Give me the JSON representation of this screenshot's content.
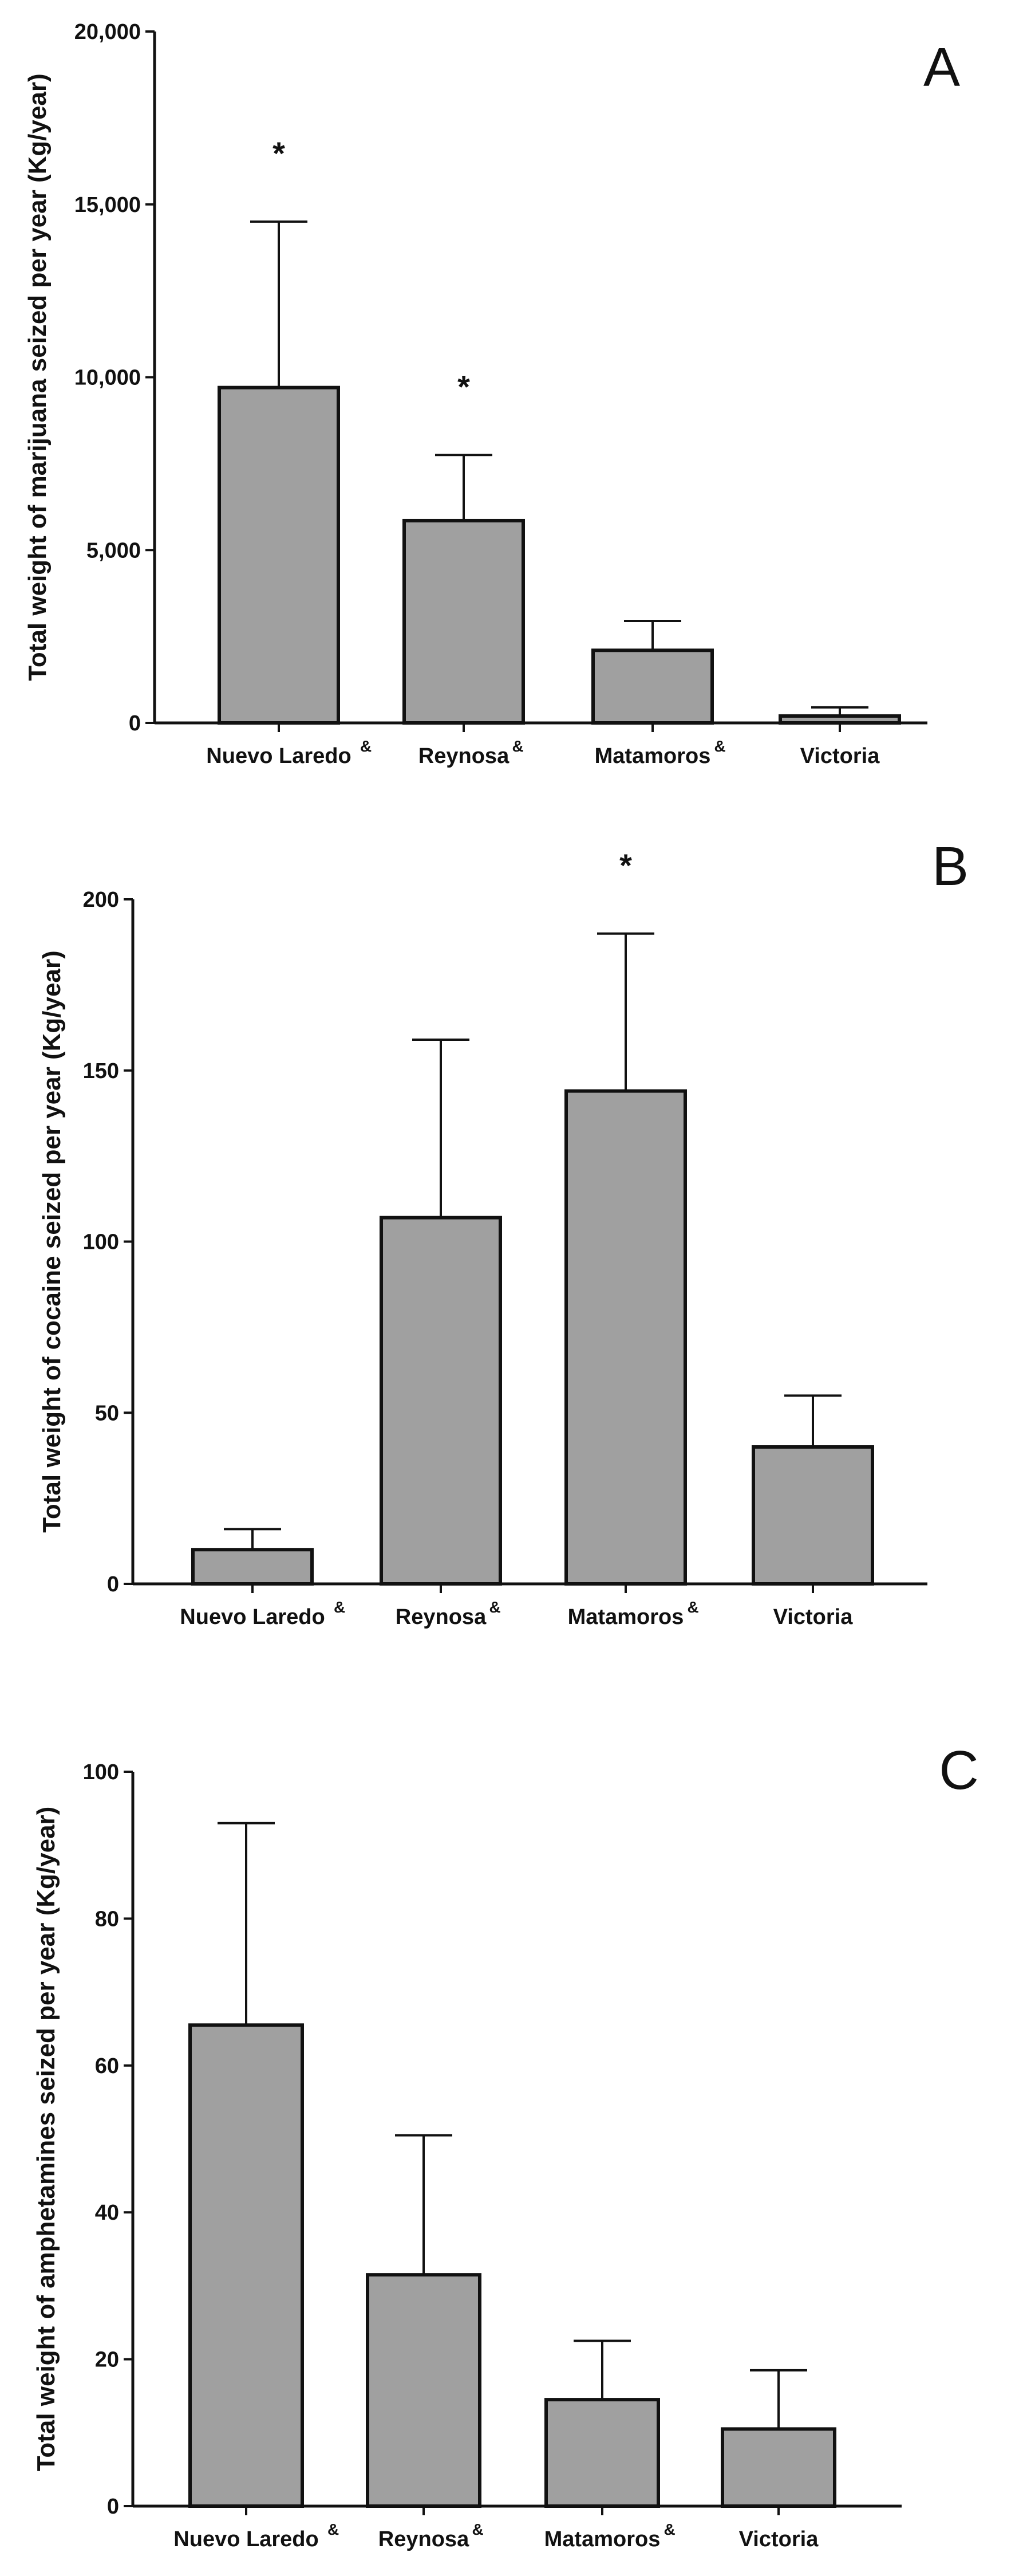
{
  "chart_data": [
    {
      "type": "bar",
      "panel": "A",
      "ylabel": "Total weight of marijuana seized per year (Kg/year)",
      "ylim": [
        0,
        20000
      ],
      "yticks": [
        0,
        5000,
        10000,
        15000,
        20000
      ],
      "ytick_labels": [
        "0",
        "5,000",
        "10,000",
        "15,000",
        "20,000"
      ],
      "categories": [
        "Nuevo Laredo",
        "Reynosa",
        "Matamoros",
        "Victoria"
      ],
      "category_marks": [
        "&",
        "&",
        "&",
        ""
      ],
      "values": [
        9700,
        5850,
        2100,
        200
      ],
      "errors": [
        4800,
        1900,
        850,
        250
      ],
      "significance": [
        "*",
        "*",
        "",
        ""
      ]
    },
    {
      "type": "bar",
      "panel": "B",
      "ylabel": "Total weight of cocaine seized per year (Kg/year)",
      "ylim": [
        0,
        200
      ],
      "yticks": [
        0,
        50,
        100,
        150,
        200
      ],
      "ytick_labels": [
        "0",
        "50",
        "100",
        "150",
        "200"
      ],
      "categories": [
        "Nuevo Laredo",
        "Reynosa",
        "Matamoros",
        "Victoria"
      ],
      "category_marks": [
        "&",
        "&",
        "&",
        ""
      ],
      "values": [
        10,
        107,
        144,
        40
      ],
      "errors": [
        6,
        52,
        46,
        15
      ],
      "significance": [
        "",
        "",
        "*",
        ""
      ]
    },
    {
      "type": "bar",
      "panel": "C",
      "ylabel": "Total weight of amphetamines seized per year (Kg/year)",
      "ylim": [
        0,
        100
      ],
      "yticks": [
        0,
        20,
        40,
        60,
        80,
        100
      ],
      "ytick_labels": [
        "0",
        "20",
        "40",
        "60",
        "80",
        "100"
      ],
      "categories": [
        "Nuevo Laredo",
        "Reynosa",
        "Matamoros",
        "Victoria"
      ],
      "category_marks": [
        "&",
        "&",
        "&",
        ""
      ],
      "values": [
        65.5,
        31.5,
        14.5,
        10.5
      ],
      "errors": [
        27.5,
        19,
        8,
        8
      ],
      "significance": [
        "",
        "",
        "",
        ""
      ]
    }
  ],
  "colors": {
    "bar_fill": "#a0a0a0",
    "stroke": "#111111"
  }
}
